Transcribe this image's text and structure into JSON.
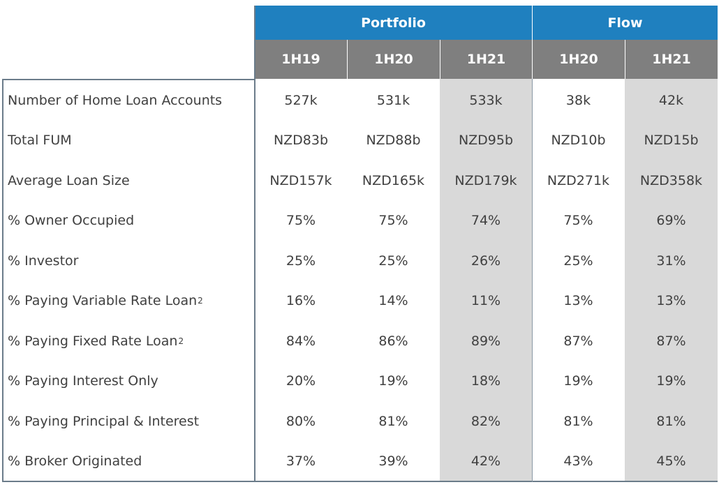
{
  "table": {
    "groups": [
      "Portfolio",
      "Flow"
    ],
    "columns": [
      "1H19",
      "1H20",
      "1H21",
      "1H20",
      "1H21"
    ],
    "rows": [
      {
        "label": "Number of Home Loan Accounts",
        "cells": [
          "527k",
          "531k",
          "533k",
          "38k",
          "42k"
        ]
      },
      {
        "label": "Total FUM",
        "cells": [
          "NZD83b",
          "NZD88b",
          "NZD95b",
          "NZD10b",
          "NZD15b"
        ]
      },
      {
        "label": "Average Loan Size",
        "cells": [
          "NZD157k",
          "NZD165k",
          "NZD179k",
          "NZD271k",
          "NZD358k"
        ]
      },
      {
        "label": "% Owner Occupied",
        "cells": [
          "75%",
          "75%",
          "74%",
          "75%",
          "69%"
        ]
      },
      {
        "label": "% Investor",
        "cells": [
          "25%",
          "25%",
          "26%",
          "25%",
          "31%"
        ]
      },
      {
        "label": "% Paying Variable Rate Loan",
        "note": "2",
        "cells": [
          "16%",
          "14%",
          "11%",
          "13%",
          "13%"
        ]
      },
      {
        "label": "% Paying Fixed Rate Loan",
        "note": "2",
        "cells": [
          "84%",
          "86%",
          "89%",
          "87%",
          "87%"
        ]
      },
      {
        "label": "% Paying Interest Only",
        "cells": [
          "20%",
          "19%",
          "18%",
          "19%",
          "19%"
        ]
      },
      {
        "label": "% Paying Principal & Interest",
        "cells": [
          "80%",
          "81%",
          "82%",
          "81%",
          "81%"
        ]
      },
      {
        "label": "% Broker Originated",
        "cells": [
          "37%",
          "39%",
          "42%",
          "43%",
          "45%"
        ]
      }
    ]
  }
}
